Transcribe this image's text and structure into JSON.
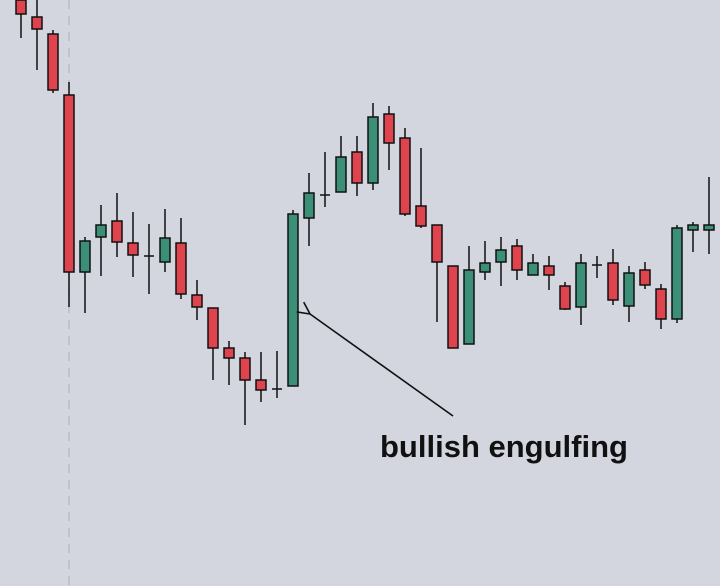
{
  "chart_data": {
    "type": "candlestick",
    "annotation": "bullish engulfing",
    "up_color": "#3a8f76",
    "down_color": "#df434d",
    "ylim": [
      0,
      586
    ],
    "open": [
      586,
      569,
      552,
      491,
      314,
      349,
      365,
      343,
      330,
      324,
      343,
      291,
      278,
      238,
      228,
      206,
      197,
      200,
      368,
      391,
      394,
      434,
      403,
      472,
      448,
      380,
      361,
      320,
      242,
      314,
      324,
      340,
      311,
      320,
      300,
      279,
      321,
      323,
      280,
      316,
      297,
      267,
      356,
      356
    ],
    "high": [
      586,
      586,
      556,
      504,
      349,
      381,
      393,
      374,
      362,
      377,
      368,
      306,
      278,
      245,
      234,
      234,
      235,
      376,
      413,
      434,
      450,
      450,
      483,
      480,
      458,
      438,
      361,
      320,
      340,
      345,
      349,
      347,
      332,
      330,
      304,
      332,
      330,
      337,
      320,
      324,
      302,
      361,
      364,
      409
    ],
    "low": [
      548,
      516,
      493,
      279,
      273,
      310,
      329,
      309,
      292,
      314,
      287,
      266,
      206,
      201,
      161,
      184,
      188,
      200,
      340,
      379,
      394,
      390,
      396,
      416,
      370,
      358,
      264,
      238,
      242,
      306,
      300,
      306,
      311,
      296,
      276,
      261,
      308,
      281,
      264,
      297,
      257,
      263,
      334,
      332
    ],
    "close": [
      572,
      557,
      496,
      314,
      345,
      361,
      344,
      331,
      330,
      348,
      292,
      279,
      238,
      228,
      206,
      196,
      197,
      372,
      393,
      391,
      429,
      403,
      469,
      443,
      372,
      360,
      324,
      238,
      316,
      323,
      336,
      316,
      323,
      311,
      277,
      323,
      321,
      286,
      313,
      301,
      267,
      358,
      361,
      361
    ]
  }
}
